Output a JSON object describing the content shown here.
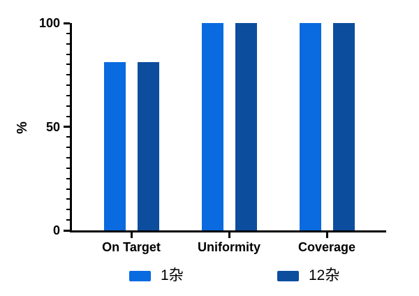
{
  "figure": {
    "background": "#ffffff"
  },
  "chart_data": {
    "type": "bar",
    "title": "",
    "categories": [
      "On Target",
      "Uniformity",
      "Coverage"
    ],
    "series": [
      {
        "name": "1杂",
        "color": "#0a6ae0",
        "values": [
          81,
          100,
          100
        ]
      },
      {
        "name": "12杂",
        "color": "#0c4d9e",
        "values": [
          81,
          100,
          100
        ]
      }
    ],
    "xlabel": "",
    "ylabel": "%",
    "ylim": [
      0,
      100
    ],
    "yticks": [
      0,
      50,
      100
    ],
    "minor_tick_step": 5,
    "grid": false,
    "legend_position": "bottom",
    "axis_color": "#000000"
  }
}
